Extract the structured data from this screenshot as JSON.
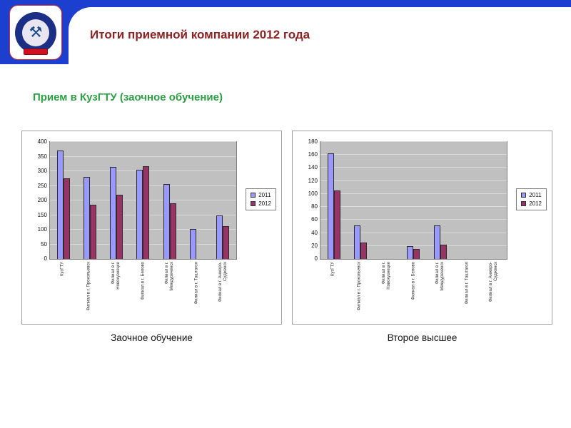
{
  "slide": {
    "title": "Итоги приемной компании 2012 года",
    "subtitle": "Прием в КузГТУ (заочное обучение)"
  },
  "logo": {
    "icon_glyph": "⚒",
    "description": "KuzGTU emblem"
  },
  "colors": {
    "header_blue": "#1d3fd0",
    "title_text": "#8b2323",
    "subtitle_green": "#2e9e44",
    "series_2011": "#9999FF",
    "series_2012": "#993366",
    "plot_bg": "#c0c0c0",
    "gridline": "#d9d9d9"
  },
  "captions": [
    "Заочное обучение",
    "Второе высшее"
  ],
  "chart_data": [
    {
      "type": "bar",
      "title": "Заочное обучение",
      "categories": [
        "КузГТУ",
        "Филиал в г. Прокопьевск",
        "Филиал в г. Новокузнецке",
        "Филиал в г. Белово",
        "Филиал в г. Междуреченск",
        "Филиал в г. Таштагол",
        "Филиал в г. Анжеро-Судженск"
      ],
      "series": [
        {
          "name": "2011",
          "values": [
            370,
            280,
            315,
            305,
            255,
            103,
            148
          ]
        },
        {
          "name": "2012",
          "values": [
            275,
            185,
            220,
            318,
            190,
            0,
            112
          ]
        }
      ],
      "ylim": [
        0,
        400
      ],
      "ytick": 50,
      "legend_position": "right",
      "legend_entries": [
        "2011",
        "2012"
      ],
      "grid": true,
      "xlabel": "",
      "ylabel": ""
    },
    {
      "type": "bar",
      "title": "Второе высшее",
      "categories": [
        "КузГТУ",
        "Филиал в г. Прокопьевск",
        "Филиал в г. Новокузнецке",
        "Филиал в г. Белово",
        "Филиал в г. Междуреченск",
        "Филиал в г. Таштагол",
        "Филиал в г. Анжеро-Судженск"
      ],
      "series": [
        {
          "name": "2011",
          "values": [
            162,
            52,
            0,
            20,
            52,
            0,
            0
          ]
        },
        {
          "name": "2012",
          "values": [
            105,
            25,
            0,
            15,
            22,
            0,
            0
          ]
        }
      ],
      "ylim": [
        0,
        180
      ],
      "ytick": 20,
      "legend_position": "right",
      "legend_entries": [
        "2011",
        "2012"
      ],
      "grid": true,
      "xlabel": "",
      "ylabel": ""
    }
  ]
}
